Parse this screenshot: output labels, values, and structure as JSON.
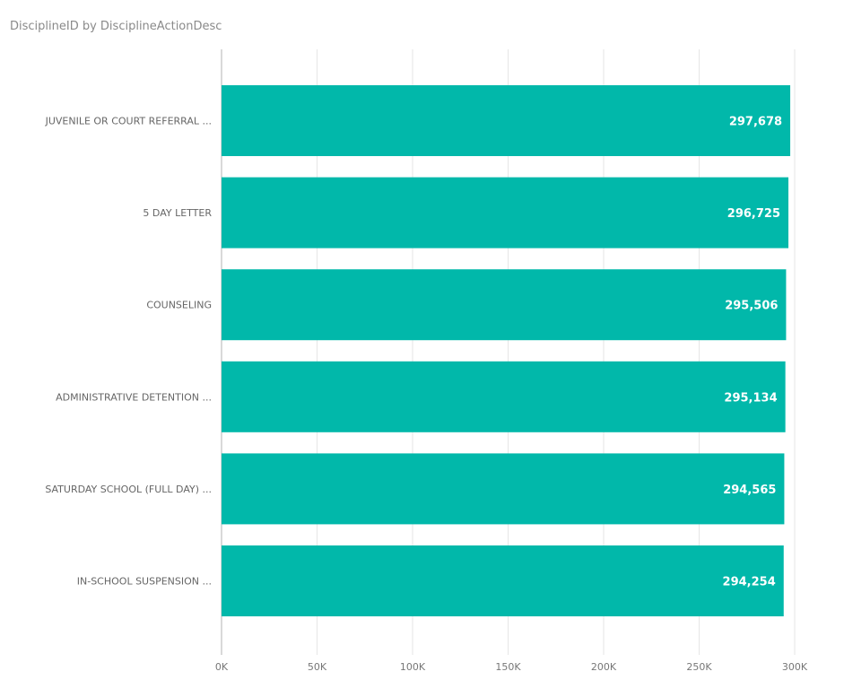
{
  "chart_data": {
    "type": "bar",
    "orientation": "horizontal",
    "title": "DisciplineID by DisciplineActionDesc",
    "categories": [
      "JUVENILE OR COURT REFERRAL ...",
      "5 DAY LETTER",
      "COUNSELING",
      "ADMINISTRATIVE DETENTION ...",
      "SATURDAY SCHOOL (FULL DAY) ...",
      "IN-SCHOOL SUSPENSION ..."
    ],
    "values": [
      297678,
      296725,
      295506,
      295134,
      294565,
      294254
    ],
    "value_labels": [
      "297,678",
      "296,725",
      "295,506",
      "295,134",
      "294,565",
      "294,254"
    ],
    "xlim": [
      0,
      300000
    ],
    "x_ticks": [
      0,
      50000,
      100000,
      150000,
      200000,
      250000,
      300000
    ],
    "x_tick_labels": [
      "0K",
      "50K",
      "100K",
      "150K",
      "200K",
      "250K",
      "300K"
    ],
    "grid": true,
    "bar_color": "#01B8AA",
    "grid_color": "#e6e6e6",
    "axis_color": "#b3b3b3"
  }
}
